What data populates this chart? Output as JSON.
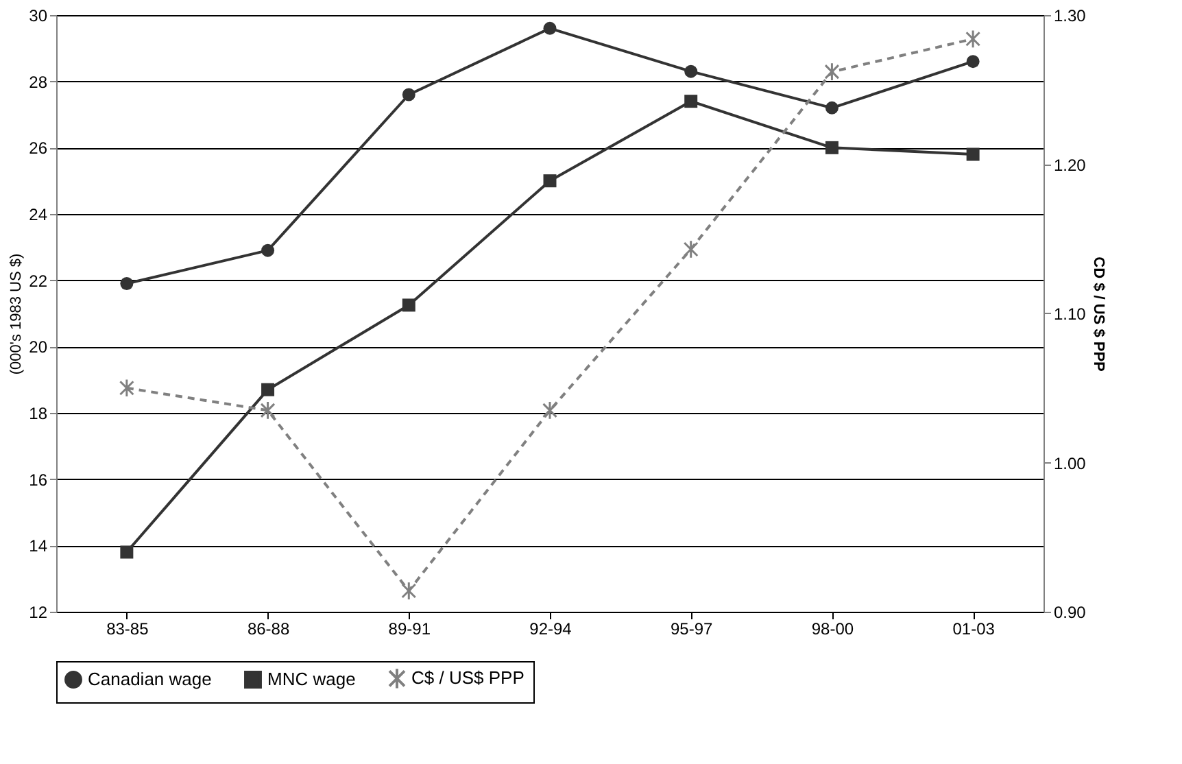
{
  "chart_data": {
    "type": "line",
    "ylabel": "(000's 1983 US $)",
    "y2label": "CD $ / US $ PPP",
    "categories": [
      "83-85",
      "86-88",
      "89-91",
      "92-94",
      "95-97",
      "98-00",
      "01-03"
    ],
    "series": [
      {
        "name": "Canadian wage",
        "color": "#333333",
        "marker": "circle",
        "line_style": "solid",
        "values": [
          21.9,
          22.9,
          27.6,
          29.6,
          28.3,
          27.2,
          28.6
        ]
      },
      {
        "name": "MNC wage",
        "color": "#333333",
        "marker": "square",
        "line_style": "solid",
        "values": [
          13.8,
          18.7,
          21.25,
          25.0,
          27.4,
          26.0,
          25.8
        ]
      },
      {
        "name": "C$ / US$ PPP",
        "color": "#808080",
        "marker": "cross",
        "line_style": "dashed",
        "axis": "y2",
        "values": [
          1.05,
          1.035,
          0.914,
          1.035,
          1.143,
          1.262,
          1.284
        ]
      }
    ],
    "ylim": [
      12,
      30
    ],
    "yticks": [
      12,
      14,
      16,
      18,
      20,
      22,
      24,
      26,
      28,
      30
    ],
    "y2lim": [
      0.9,
      1.3
    ],
    "y2ticks": [
      {
        "value": 0.9,
        "label": "0.90"
      },
      {
        "value": 1.0,
        "label": "1.00"
      },
      {
        "value": 1.1,
        "label": "1.10"
      },
      {
        "value": 1.2,
        "label": "1.20"
      },
      {
        "value": 1.3,
        "label": "1.30"
      }
    ],
    "grid": "y",
    "legend": "bottom"
  }
}
